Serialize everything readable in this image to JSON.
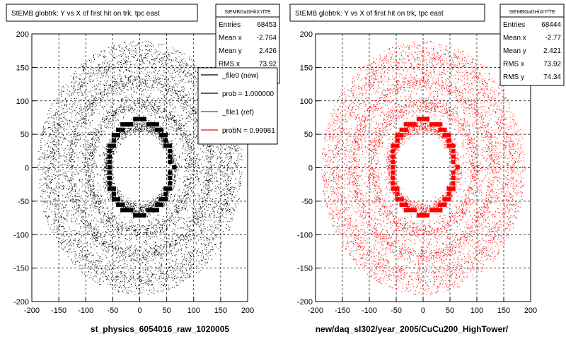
{
  "colors": {
    "background": "#ffffff",
    "pad": "#e0e0e0",
    "new": "#000000",
    "ref": "#ff0000"
  },
  "footer_text": "",
  "chart_data": [
    {
      "type": "scatter",
      "title": "StEMB globtrk: Y vs X of first hit on trk, tpc east",
      "xlabel": "st_physics_6054016_raw_1020005",
      "ylabel": "",
      "xlim": [
        -200,
        200
      ],
      "ylim": [
        -200,
        200
      ],
      "xticks": [
        -200,
        -150,
        -100,
        -50,
        0,
        50,
        100,
        150,
        200
      ],
      "yticks": [
        -200,
        -150,
        -100,
        -50,
        0,
        50,
        100,
        150,
        200
      ],
      "grid": true,
      "series": [
        {
          "name": "_file0 (new)",
          "color": "#000000"
        }
      ],
      "stats": {
        "name": "StEMBGaGHitXYfTE",
        "rows": [
          {
            "label": "Entries",
            "value": "68453"
          },
          {
            "label": "Mean x",
            "value": "-2.764"
          },
          {
            "label": "Mean y",
            "value": "2.426"
          },
          {
            "label": "RMS x",
            "value": "73.92"
          }
        ]
      },
      "legend": {
        "placement": "right",
        "entries": [
          {
            "label": "_file0 (new)",
            "color": "#000000"
          },
          {
            "label": "prob = 1.000000",
            "color": "#000000"
          },
          {
            "label": "_file1 (ref)",
            "color": "#ff0000"
          },
          {
            "label": "probN = 0.99981",
            "color": "#ff0000"
          }
        ]
      }
    },
    {
      "type": "scatter",
      "title": "StEMB globtrk: Y vs X of first hit on trk, tpc east",
      "xlabel": "new/daq_sl302/year_2005/CuCu200_HighTower/",
      "ylabel": "",
      "xlim": [
        -200,
        200
      ],
      "ylim": [
        -200,
        200
      ],
      "xticks": [
        -200,
        -150,
        -100,
        -50,
        0,
        50,
        100,
        150,
        200
      ],
      "yticks": [
        -200,
        -150,
        -100,
        -50,
        0,
        50,
        100,
        150,
        200
      ],
      "grid": true,
      "series": [
        {
          "name": "_file1 (ref)",
          "color": "#ff0000"
        }
      ],
      "stats": {
        "name": "StEMBGaGHitXYfTE",
        "rows": [
          {
            "label": "Entries",
            "value": "68444"
          },
          {
            "label": "Mean x",
            "value": "-2.77"
          },
          {
            "label": "Mean y",
            "value": "2.421"
          },
          {
            "label": "RMS x",
            "value": "73.92"
          },
          {
            "label": "RMS y",
            "value": "74.34"
          }
        ]
      }
    }
  ]
}
